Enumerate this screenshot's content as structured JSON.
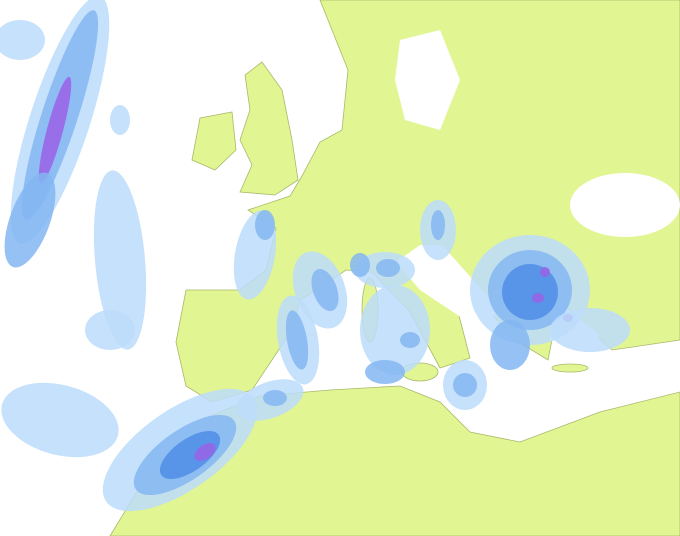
{
  "map": {
    "colors": {
      "sea": "#ffffff",
      "land": "#e2f593",
      "border": "#a9b86a",
      "precip_light": "#bcdcfa",
      "precip_medium": "#84b6f2",
      "precip_heavy": "#4f8ee6",
      "precip_extreme": "#9a62e6"
    }
  }
}
